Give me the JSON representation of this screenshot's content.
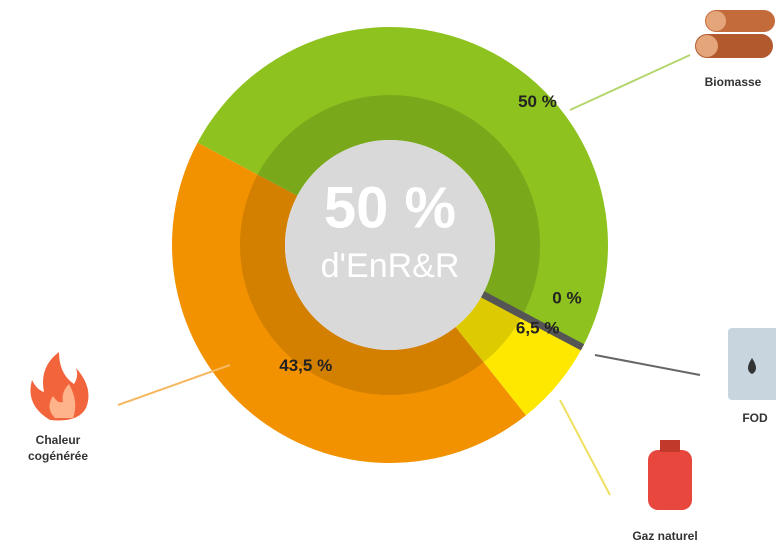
{
  "chart_data": {
    "type": "pie",
    "center_label": [
      "50 %",
      "d'EnR&R"
    ],
    "categories": [
      "Biomasse",
      "FOD",
      "Gaz naturel",
      "Chaleur cogénérée"
    ],
    "values": [
      50,
      0,
      6.5,
      43.5
    ],
    "value_labels": [
      "50 %",
      "0 %",
      "6,5 %",
      "43,5 %"
    ],
    "colors": [
      "#8dc21f",
      "#555555",
      "#ffe800",
      "#f39200"
    ]
  }
}
